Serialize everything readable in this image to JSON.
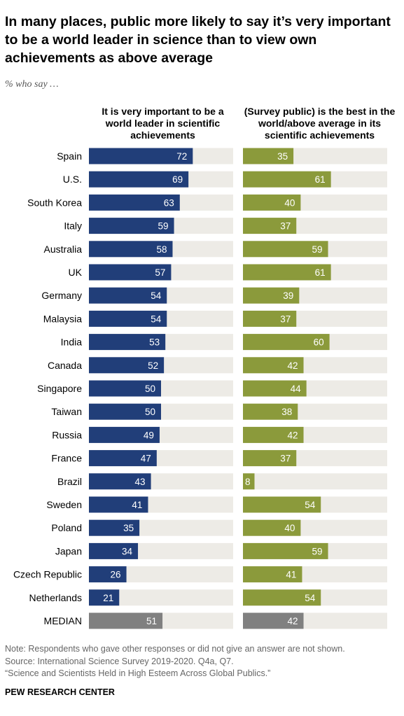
{
  "title": "In many places, public more likely to say it’s very important to be a world leader in science than to view own achievements as above average",
  "subtitle": "% who say …",
  "columns": [
    "It is very important to be a world leader in scientific achievements",
    "(Survey public) is the best in the world/above average in its scientific achievements"
  ],
  "colors": {
    "col1_bar": "#213e79",
    "col2_bar": "#8b9a3b",
    "median_bar": "#808080",
    "track": "#edebe6"
  },
  "chart_data": {
    "type": "bar",
    "orientation": "horizontal",
    "categories": [
      "Spain",
      "U.S.",
      "South Korea",
      "Italy",
      "Australia",
      "UK",
      "Germany",
      "Malaysia",
      "India",
      "Canada",
      "Singapore",
      "Taiwan",
      "Russia",
      "France",
      "Brazil",
      "Sweden",
      "Poland",
      "Japan",
      "Czech Republic",
      "Netherlands",
      "MEDIAN"
    ],
    "series": [
      {
        "name": "It is very important to be a world leader in scientific achievements",
        "values": [
          72,
          69,
          63,
          59,
          58,
          57,
          54,
          54,
          53,
          52,
          50,
          50,
          49,
          47,
          43,
          41,
          35,
          34,
          26,
          21,
          51
        ]
      },
      {
        "name": "(Survey public) is the best in the world/above average in its scientific achievements",
        "values": [
          35,
          61,
          40,
          37,
          59,
          61,
          39,
          37,
          60,
          42,
          44,
          38,
          42,
          37,
          8,
          54,
          40,
          59,
          41,
          54,
          42
        ]
      }
    ],
    "xlim": [
      0,
      100
    ]
  },
  "footer": {
    "note": "Note: Respondents who gave other responses or did not give an answer are not shown.",
    "source": "Source: International Science Survey 2019-2020. Q4a, Q7.",
    "report": "“Science and Scientists Held in High Esteem Across Global Publics.”",
    "org": "PEW RESEARCH CENTER"
  }
}
